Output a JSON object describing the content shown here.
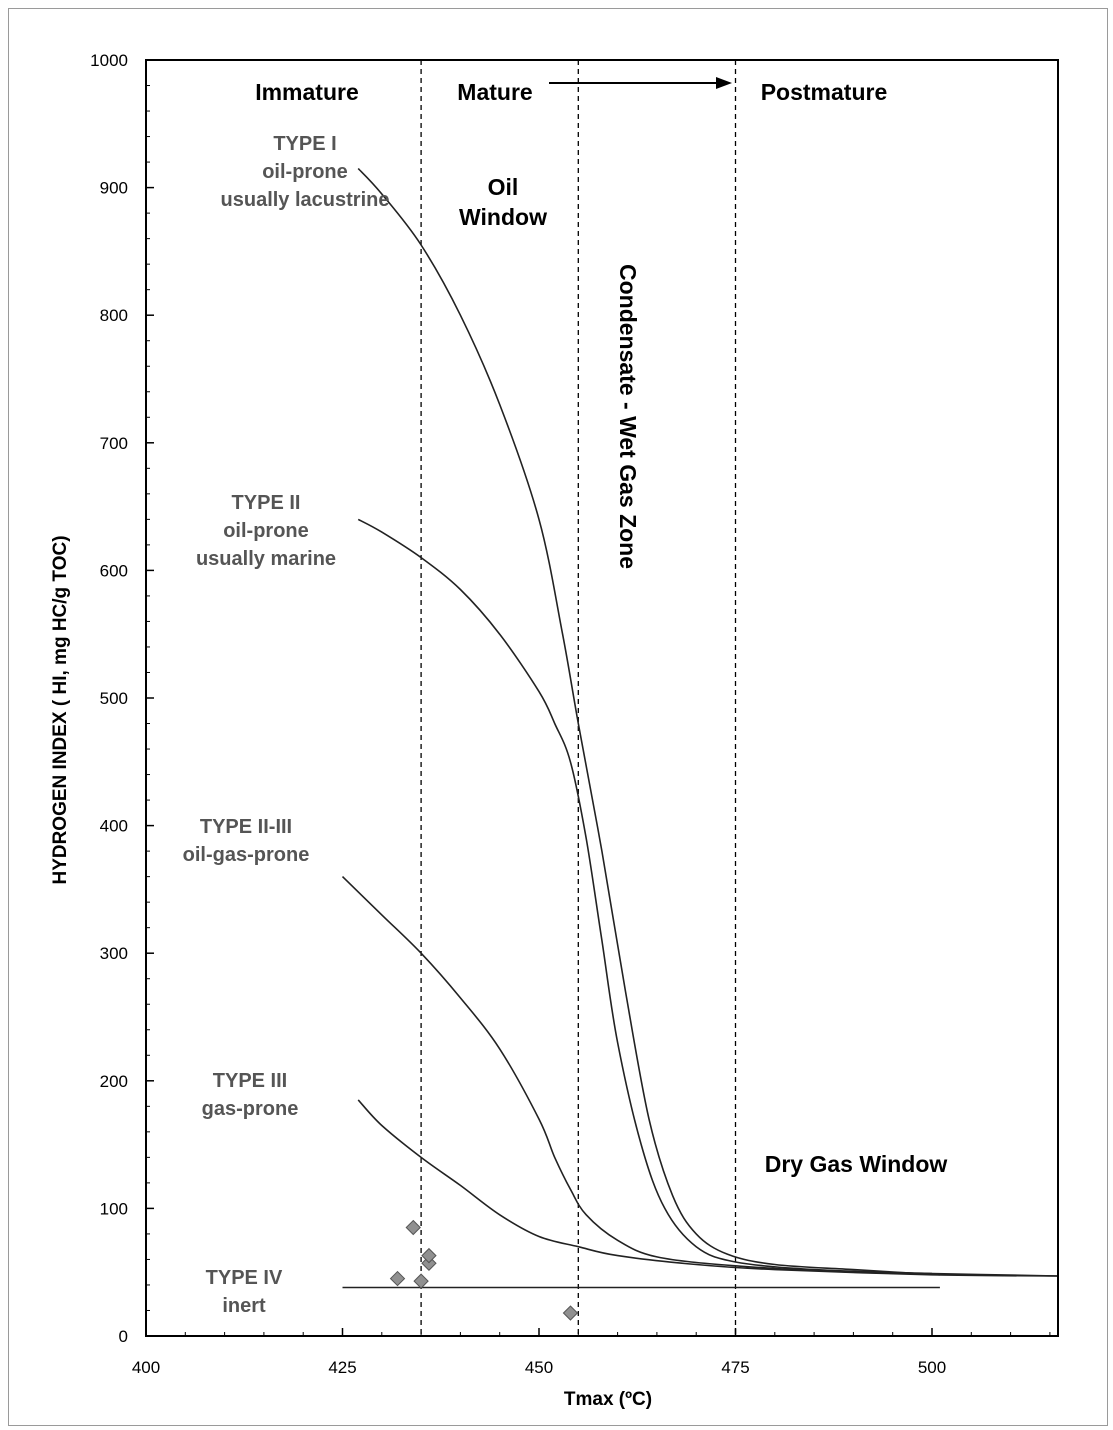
{
  "chart_data": {
    "type": "line",
    "xlabel": "Tmax (ºC)",
    "ylabel": "HYDROGEN INDEX ( HI, mg HC/g TOC)",
    "xlim": [
      400,
      517
    ],
    "ylim": [
      0,
      1000
    ],
    "x_ticks": [
      400,
      425,
      450,
      475,
      500
    ],
    "y_ticks": [
      0,
      100,
      200,
      300,
      400,
      500,
      600,
      700,
      800,
      900,
      1000
    ],
    "grid": false,
    "boundaries": [
      435,
      455,
      475
    ],
    "zone_labels": {
      "immature": "Immature",
      "mature": "Mature",
      "postmature": "Postmature",
      "oil_window_1": "Oil",
      "oil_window_2": "Window",
      "condensate": "Condensate - Wet Gas Zone",
      "dry_gas": "Dry Gas Window"
    },
    "kerogen_labels": {
      "type_i": [
        "TYPE I",
        "oil-prone",
        "usually lacustrine"
      ],
      "type_ii": [
        "TYPE II",
        "oil-prone",
        "usually marine"
      ],
      "type_ii_iii": [
        "TYPE II-III",
        "oil-gas-prone"
      ],
      "type_iii": [
        "TYPE III",
        "gas-prone"
      ],
      "type_iv": [
        "TYPE IV",
        "inert"
      ]
    },
    "series": [
      {
        "points": [
          [
            427,
            915
          ],
          [
            430,
            895
          ],
          [
            435,
            855
          ],
          [
            440,
            800
          ],
          [
            445,
            730
          ],
          [
            450,
            640
          ],
          [
            453,
            550
          ],
          [
            455,
            480
          ],
          [
            458,
            380
          ],
          [
            461,
            270
          ],
          [
            464,
            170
          ],
          [
            467,
            110
          ],
          [
            470,
            80
          ],
          [
            474,
            64
          ],
          [
            480,
            56
          ],
          [
            490,
            52
          ],
          [
            501,
            48
          ]
        ]
      },
      {
        "points": [
          [
            427,
            640
          ],
          [
            430,
            630
          ],
          [
            435,
            610
          ],
          [
            440,
            585
          ],
          [
            445,
            550
          ],
          [
            450,
            505
          ],
          [
            452,
            480
          ],
          [
            454,
            450
          ],
          [
            456,
            390
          ],
          [
            458,
            310
          ],
          [
            460,
            230
          ],
          [
            463,
            150
          ],
          [
            466,
            100
          ],
          [
            470,
            70
          ],
          [
            475,
            58
          ],
          [
            485,
            52
          ],
          [
            500,
            49
          ],
          [
            516,
            47
          ]
        ]
      },
      {
        "points": [
          [
            425,
            360
          ],
          [
            430,
            330
          ],
          [
            435,
            300
          ],
          [
            440,
            265
          ],
          [
            445,
            225
          ],
          [
            450,
            170
          ],
          [
            452,
            140
          ],
          [
            454,
            115
          ],
          [
            456,
            95
          ],
          [
            460,
            75
          ],
          [
            465,
            62
          ],
          [
            475,
            55
          ],
          [
            490,
            50
          ],
          [
            500,
            49
          ]
        ]
      },
      {
        "points": [
          [
            427,
            185
          ],
          [
            430,
            165
          ],
          [
            435,
            140
          ],
          [
            440,
            118
          ],
          [
            445,
            95
          ],
          [
            450,
            78
          ],
          [
            455,
            70
          ],
          [
            460,
            63
          ],
          [
            470,
            56
          ],
          [
            480,
            52
          ],
          [
            500,
            48
          ],
          [
            516,
            47
          ]
        ]
      },
      {
        "points": [
          [
            425,
            38
          ],
          [
            501,
            38
          ]
        ]
      }
    ],
    "samples": [
      [
        432,
        45
      ],
      [
        434,
        85
      ],
      [
        435,
        43
      ],
      [
        436,
        57
      ],
      [
        436,
        63
      ],
      [
        454,
        18
      ]
    ]
  }
}
